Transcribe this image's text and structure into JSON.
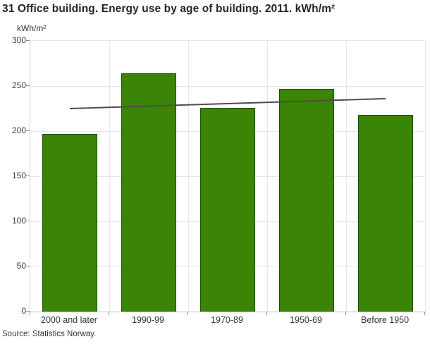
{
  "title": "31 Office building. Energy use by age of building. 2011. kWh/m²",
  "source": "Source: Statistics Norway.",
  "chart_data": {
    "type": "bar",
    "title": "31 Office building. Energy use by age of building. 2011. kWh/m²",
    "unit_label": "kWh/m²",
    "xlabel": "",
    "ylabel": "kWh/m²",
    "categories": [
      "2000 and later",
      "1990-99",
      "1970-89",
      "1950-69",
      "Before 1950"
    ],
    "values": [
      197,
      264,
      226,
      247,
      218
    ],
    "trend_line": {
      "start_value": 225,
      "end_value": 236
    },
    "ylim": [
      0,
      300
    ],
    "yticks": [
      0,
      50,
      100,
      150,
      200,
      250,
      300
    ],
    "grid": true,
    "legend": "none",
    "colors": {
      "bar_fill": "#3a8506",
      "bar_border": "#1e4801",
      "trend": "#4d4d4d",
      "grid": "#e6e6e6",
      "axis": "#bfbfbf",
      "tick": "#8c8c8c",
      "text": "#333333",
      "title_text": "#262626"
    }
  }
}
